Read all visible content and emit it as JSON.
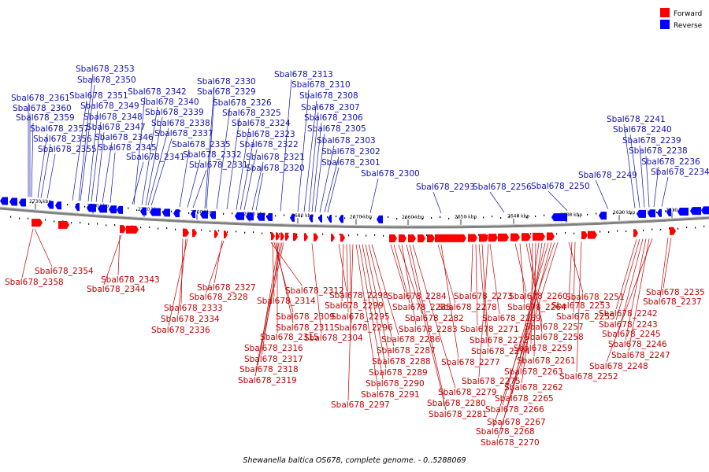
{
  "caption": "Shewanella baltica OS678, complete genome. - 0..5288069",
  "legend": {
    "forward_label": "Forward",
    "reverse_label": "Reverse",
    "forward_color": "#ff0000",
    "reverse_color": "#0000ff"
  },
  "colors": {
    "forward_text": "#c00000",
    "reverse_text": "#1010b0",
    "backbone": "#808080"
  },
  "kbp_ticks": [
    "2730 kbp",
    "2720 kbp",
    "2710 kbp",
    "2700 kbp",
    "2690 kbp",
    "2680 kbp",
    "2670 kbp",
    "2660 kbp",
    "2650 kbp",
    "2640 kbp",
    "2630 kbp",
    "2620 kbp",
    "2610 kbp"
  ],
  "reverse_genes": [
    "Sbal678_2361",
    "Sbal678_2360",
    "Sbal678_2359",
    "Sbal678_2357",
    "Sbal678_2356",
    "Sbal678_2355",
    "Sbal678_2353",
    "Sbal678_2350",
    "Sbal678_2351",
    "Sbal678_2349",
    "Sbal678_2348",
    "Sbal678_2347",
    "Sbal678_2346",
    "Sbal678_2345",
    "Sbal678_2342",
    "Sbal678_2340",
    "Sbal678_2339",
    "Sbal678_2338",
    "Sbal678_2337",
    "Sbal678_2341",
    "Sbal678_2330",
    "Sbal678_2329",
    "Sbal678_2326",
    "Sbal678_2325",
    "Sbal678_2324",
    "Sbal678_2323",
    "Sbal678_2322",
    "Sbal678_2321",
    "Sbal678_2320",
    "Sbal678_2335",
    "Sbal678_2332",
    "Sbal678_2331",
    "Sbal678_2313",
    "Sbal678_2310",
    "Sbal678_2308",
    "Sbal678_2307",
    "Sbal678_2306",
    "Sbal678_2305",
    "Sbal678_2303",
    "Sbal678_2302",
    "Sbal678_2301",
    "Sbal678_2300",
    "Sbal678_2293",
    "Sbal678_2256",
    "Sbal678_2250",
    "Sbal678_2249",
    "Sbal678_2241",
    "Sbal678_2240",
    "Sbal678_2239",
    "Sbal678_2238",
    "Sbal678_2236",
    "Sbal678_2234"
  ],
  "forward_genes": [
    "Sbal678_2354",
    "Sbal678_2358",
    "Sbal678_2343",
    "Sbal678_2344",
    "Sbal678_2333",
    "Sbal678_2334",
    "Sbal678_2336",
    "Sbal678_2327",
    "Sbal678_2328",
    "Sbal678_2312",
    "Sbal678_2314",
    "Sbal678_2309",
    "Sbal678_2311",
    "Sbal678_2315",
    "Sbal678_2316",
    "Sbal678_2317",
    "Sbal678_2318",
    "Sbal678_2319",
    "Sbal678_2304",
    "Sbal678_2298",
    "Sbal678_2299",
    "Sbal678_2295",
    "Sbal678_2296",
    "Sbal678_2297",
    "Sbal678_2291",
    "Sbal678_2290",
    "Sbal678_2289",
    "Sbal678_2288",
    "Sbal678_2287",
    "Sbal678_2286",
    "Sbal678_2284",
    "Sbal678_2285",
    "Sbal678_2282",
    "Sbal678_2283",
    "Sbal678_2281",
    "Sbal678_2280",
    "Sbal678_2279",
    "Sbal678_2278",
    "Sbal678_2277",
    "Sbal678_2273",
    "Sbal678_2271",
    "Sbal678_2272",
    "Sbal678_2274",
    "Sbal678_2275",
    "Sbal678_2269",
    "Sbal678_2260",
    "Sbal678_2264",
    "Sbal678_2257",
    "Sbal678_2258",
    "Sbal678_2259",
    "Sbal678_2261",
    "Sbal678_2263",
    "Sbal678_2262",
    "Sbal678_2265",
    "Sbal678_2266",
    "Sbal678_2267",
    "Sbal678_2268",
    "Sbal678_2270",
    "Sbal678_2251",
    "Sbal678_2253",
    "Sbal678_2255",
    "Sbal678_2252",
    "Sbal678_2235",
    "Sbal678_2237",
    "Sbal678_2242",
    "Sbal678_2243",
    "Sbal678_2245",
    "Sbal678_2246",
    "Sbal678_2247",
    "Sbal678_2248"
  ]
}
